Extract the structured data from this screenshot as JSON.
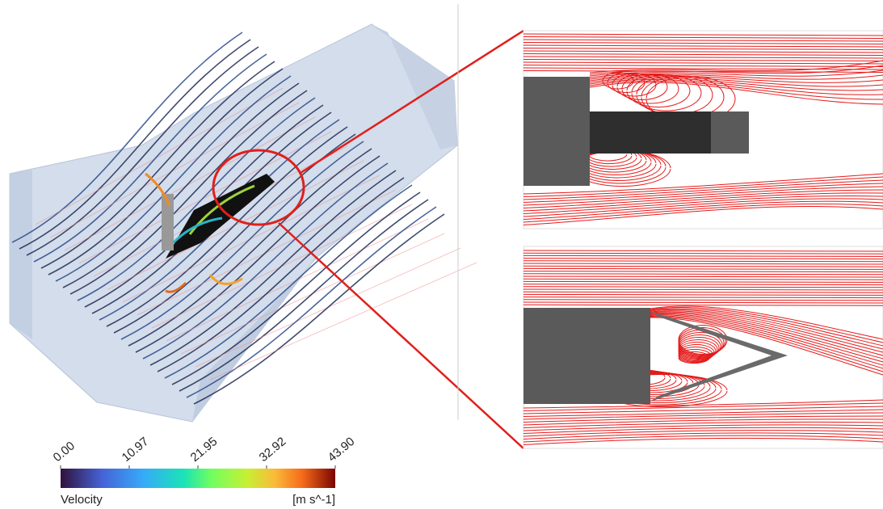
{
  "colorbar": {
    "ticks": [
      {
        "value": 0,
        "label": "0.00"
      },
      10.97,
      21.95,
      32.92,
      {
        "value": 43.9,
        "label": "43.90"
      }
    ],
    "title": "Velocity",
    "unit": "[m s^-1]"
  }
}
